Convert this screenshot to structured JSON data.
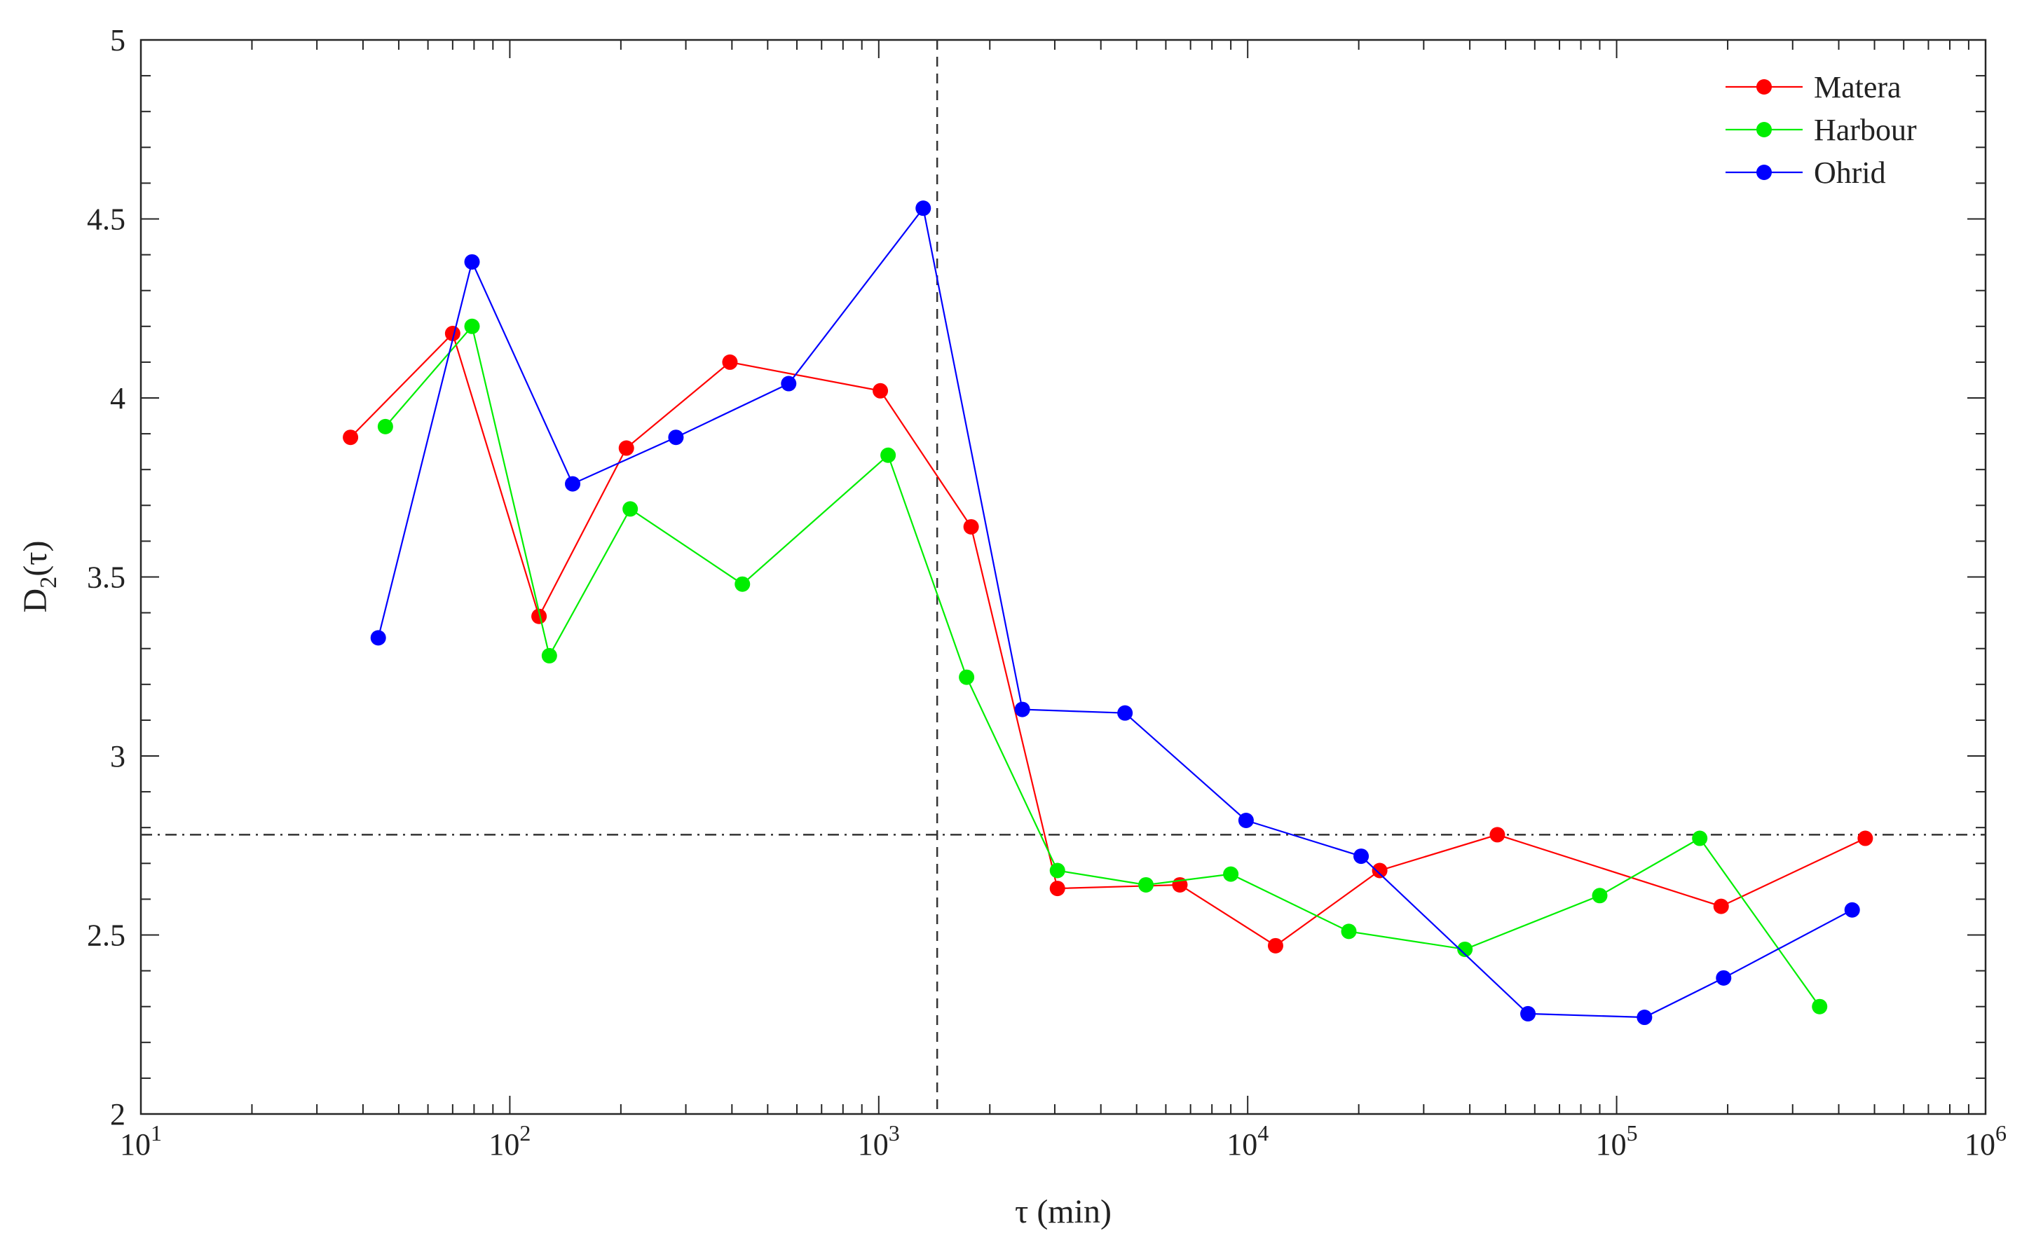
{
  "chart_data": {
    "type": "line",
    "xlabel": "τ (min)",
    "ylabel_main": "D",
    "ylabel_sub": "2",
    "ylabel_tail": "(τ)",
    "x_scale": "log",
    "xlim": [
      10,
      1000000
    ],
    "ylim": [
      2,
      5
    ],
    "x_ticks": [
      {
        "value": 10,
        "base": "10",
        "exp": "1"
      },
      {
        "value": 100,
        "base": "10",
        "exp": "2"
      },
      {
        "value": 1000,
        "base": "10",
        "exp": "3"
      },
      {
        "value": 10000,
        "base": "10",
        "exp": "4"
      },
      {
        "value": 100000,
        "base": "10",
        "exp": "5"
      },
      {
        "value": 1000000,
        "base": "10",
        "exp": "6"
      }
    ],
    "y_ticks": [
      {
        "value": 2,
        "label": "2"
      },
      {
        "value": 2.5,
        "label": "2.5"
      },
      {
        "value": 3,
        "label": "3"
      },
      {
        "value": 3.5,
        "label": "3.5"
      },
      {
        "value": 4,
        "label": "4"
      },
      {
        "value": 4.5,
        "label": "4.5"
      },
      {
        "value": 5,
        "label": "5"
      }
    ],
    "grid": false,
    "legend": "top-right",
    "reference_lines": [
      {
        "orientation": "vertical",
        "value": 1440,
        "style": "dashed"
      },
      {
        "orientation": "horizontal",
        "value": 2.78,
        "style": "dash-dot"
      }
    ],
    "series": [
      {
        "name": "Matera",
        "color": "#ff0000",
        "x": [
          37,
          70,
          120,
          207,
          395,
          1010,
          1780,
          3050,
          6550,
          11900,
          22800,
          47500,
          192000,
          472000
        ],
        "y": [
          3.89,
          4.18,
          3.39,
          3.86,
          4.1,
          4.02,
          3.64,
          2.63,
          2.64,
          2.47,
          2.68,
          2.78,
          2.58,
          2.77
        ]
      },
      {
        "name": "Harbour",
        "color": "#00ee00",
        "x": [
          46,
          79,
          128,
          212,
          427,
          1060,
          1730,
          3050,
          5300,
          9000,
          18800,
          38800,
          90000,
          168000,
          355000
        ],
        "y": [
          3.92,
          4.2,
          3.28,
          3.69,
          3.48,
          3.84,
          3.22,
          2.68,
          2.64,
          2.67,
          2.51,
          2.46,
          2.61,
          2.77,
          2.3
        ]
      },
      {
        "name": "Ohrid",
        "color": "#0000ff",
        "x": [
          44,
          79,
          148,
          282,
          570,
          1320,
          2450,
          4650,
          9900,
          20300,
          57500,
          119000,
          195000,
          435000
        ],
        "y": [
          3.33,
          4.38,
          3.76,
          3.89,
          4.04,
          4.53,
          3.13,
          3.12,
          2.82,
          2.72,
          2.28,
          2.27,
          2.38,
          2.57
        ]
      }
    ]
  }
}
